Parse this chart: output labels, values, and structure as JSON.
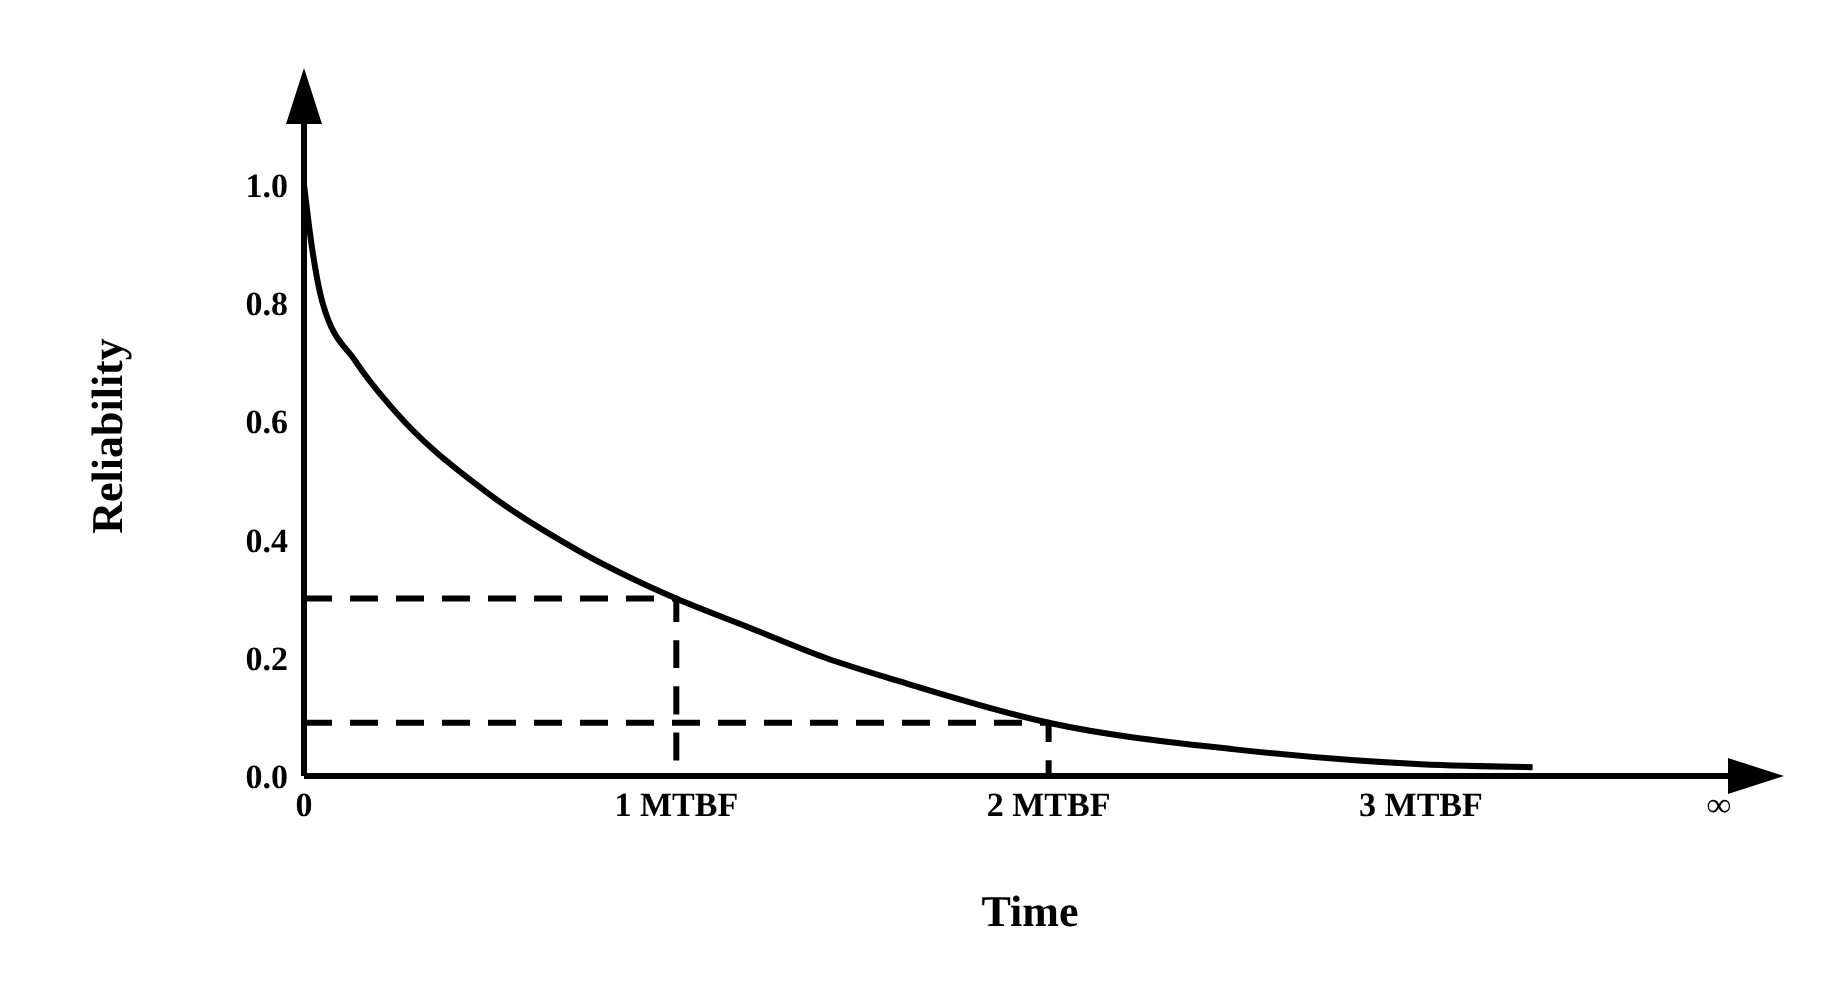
{
  "chart_data": {
    "type": "line",
    "xlabel": "Time",
    "ylabel": "Reliability",
    "xlim": [
      0,
      3.9
    ],
    "xticks": [
      {
        "value": 0,
        "label": "0"
      },
      {
        "value": 1,
        "label": "1 MTBF"
      },
      {
        "value": 2,
        "label": "2 MTBF"
      },
      {
        "value": 3,
        "label": "3 MTBF"
      },
      {
        "value": 3.8,
        "label": "∞"
      }
    ],
    "ylim": [
      0,
      1.15
    ],
    "yticks": [
      {
        "value": 0,
        "label": "0.0"
      },
      {
        "value": 0.2,
        "label": "0.2"
      },
      {
        "value": 0.4,
        "label": "0.4"
      },
      {
        "value": 0.6,
        "label": "0.6"
      },
      {
        "value": 0.8,
        "label": "0.8"
      },
      {
        "value": 1,
        "label": "1.0"
      }
    ],
    "grid": false,
    "legend": false,
    "marker": "none",
    "series": [
      {
        "color": "#000000",
        "line_style": "solid",
        "x": [
          0,
          0.02,
          0.05,
          0.14,
          0.24,
          0.49,
          0.74,
          1,
          1.2,
          1.4,
          1.6,
          2,
          2.5,
          3,
          3.3
        ],
        "values": [
          1,
          0.9,
          0.8,
          0.7,
          0.62,
          0.48,
          0.38,
          0.3,
          0.25,
          0.2,
          0.16,
          0.09,
          0.045,
          0.02,
          0.015
        ]
      },
      {
        "color": "#000000",
        "line_style": "dashed",
        "x": [
          0,
          1,
          1
        ],
        "values": [
          0.3,
          0.3,
          0
        ]
      },
      {
        "color": "#000000",
        "line_style": "dashed",
        "x": [
          0,
          2,
          2
        ],
        "values": [
          0.09,
          0.09,
          0
        ]
      }
    ]
  }
}
